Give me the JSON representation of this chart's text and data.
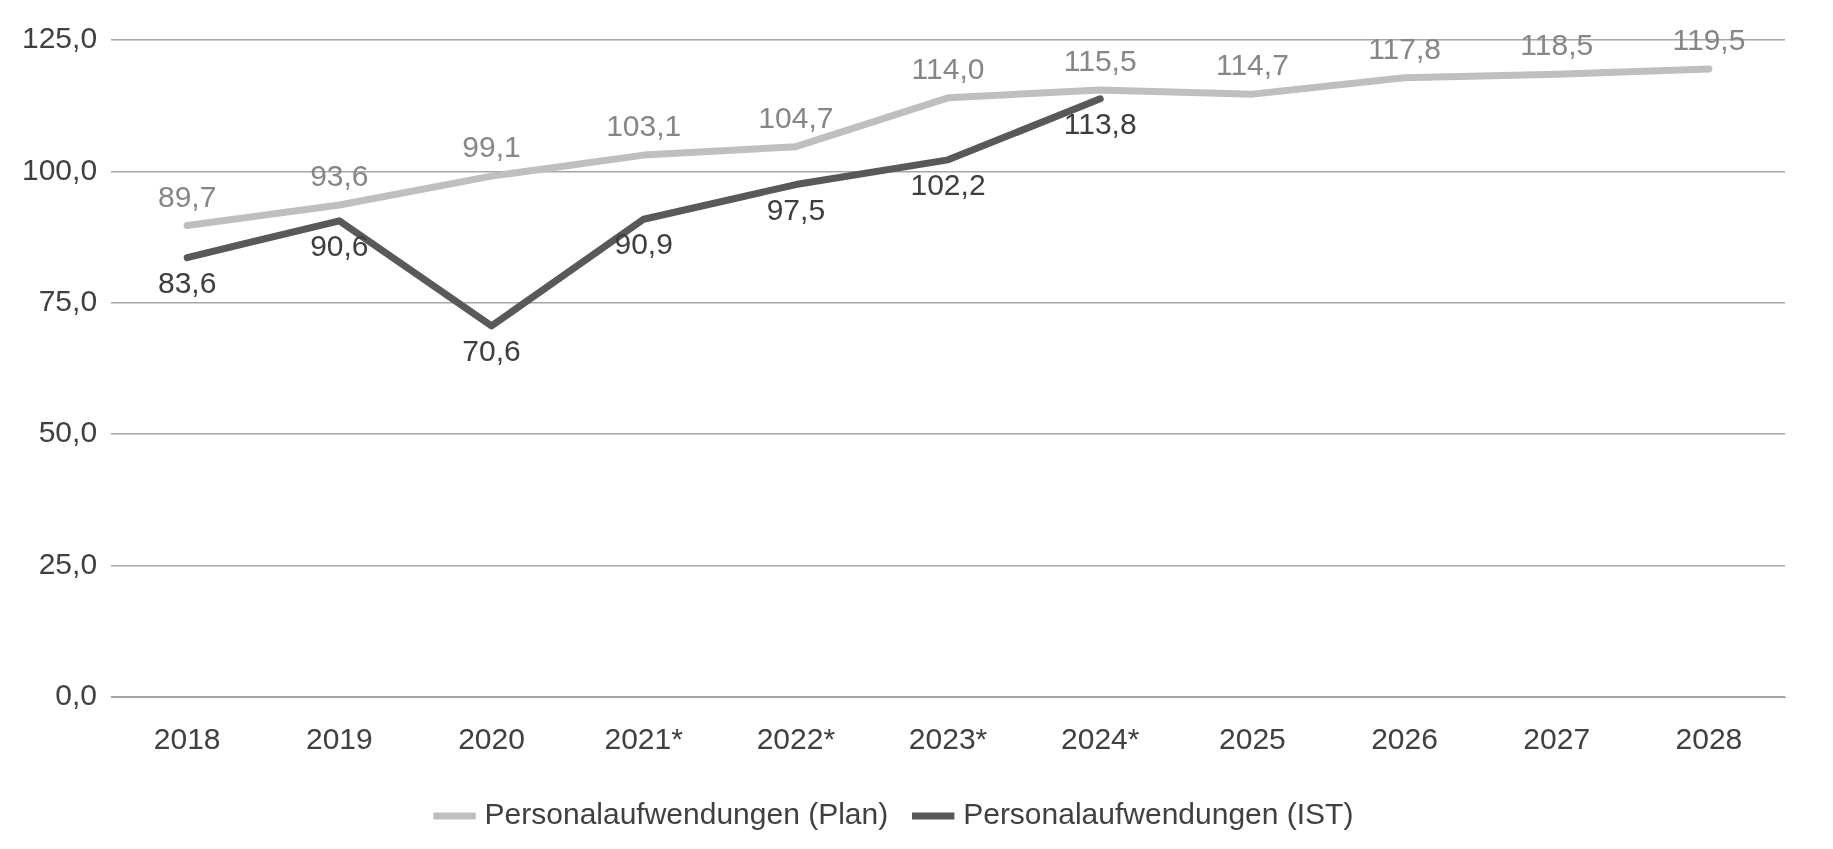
{
  "chart_data": {
    "type": "line",
    "categories": [
      "2018",
      "2019",
      "2020",
      "2021*",
      "2022*",
      "2023*",
      "2024*",
      "2025",
      "2026",
      "2027",
      "2028"
    ],
    "series": [
      {
        "name": "Personalaufwendungen (Plan)",
        "color": "#bfbfbf",
        "values": [
          89.7,
          93.6,
          99.1,
          103.1,
          104.7,
          114.0,
          115.5,
          114.7,
          117.8,
          118.5,
          119.5
        ],
        "value_labels": [
          "89,7",
          "93,6",
          "99,1",
          "103,1",
          "104,7",
          "114,0",
          "115,5",
          "114,7",
          "117,8",
          "118,5",
          "119,5"
        ]
      },
      {
        "name": "Personalaufwendungen (IST)",
        "color": "#595959",
        "values": [
          83.6,
          90.6,
          70.6,
          90.9,
          97.5,
          102.2,
          113.8,
          null,
          null,
          null,
          null
        ],
        "value_labels": [
          "83,6",
          "90,6",
          "70,6",
          "90,9",
          "97,5",
          "102,2",
          "113,8",
          null,
          null,
          null,
          null
        ]
      }
    ],
    "ylim": [
      0,
      125
    ],
    "yticks": [
      {
        "value": 0,
        "label": "0,0"
      },
      {
        "value": 25,
        "label": "25,0"
      },
      {
        "value": 50,
        "label": "50,0"
      },
      {
        "value": 75,
        "label": "75,0"
      },
      {
        "value": 100,
        "label": "100,0"
      },
      {
        "value": 125,
        "label": "125,0"
      }
    ],
    "grid": "y",
    "legend": "bottom",
    "marker": "none",
    "line_style": "solid"
  }
}
